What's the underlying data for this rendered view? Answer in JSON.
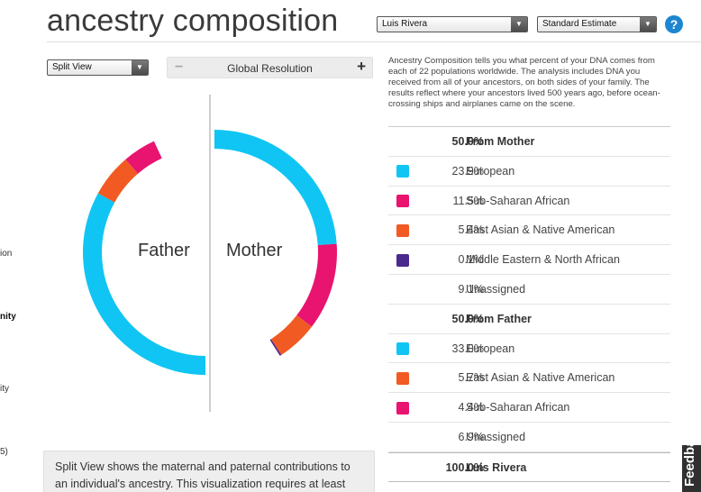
{
  "page": {
    "title": "ancestry composition"
  },
  "header": {
    "person_select": "Luis Rivera",
    "estimate_select": "Standard Estimate",
    "help_label": "?"
  },
  "controls": {
    "view_select": "Split View",
    "resolution_label": "Global Resolution",
    "minus_label": "−",
    "plus_label": "+"
  },
  "sidebar_fragments": [
    "ion",
    "nity",
    "ity",
    "5)"
  ],
  "description": "Ancestry Composition tells you what percent of your DNA comes from each of 22 populations worldwide. The analysis includes DNA you received from all of your ancestors, on both sides of your family. The results reflect where your ancestors lived 500 years ago, before ocean-crossing ships and airplanes came on the scene.",
  "info_box": "Split View shows the maternal and paternal contributions to an individual's ancestry. This visualization requires at least",
  "feedback_label": "Feedback",
  "colors": {
    "european": "#10c5f3",
    "sub_saharan_african": "#e8146f",
    "east_asian_native_american": "#f15a22",
    "middle_eastern_north_african": "#4b2a8e",
    "unassigned": "#dddddd"
  },
  "table": [
    {
      "kind": "head",
      "pct": "50.0%",
      "name": "From Mother",
      "color": ""
    },
    {
      "kind": "item",
      "pct": "23.9%",
      "name": "European",
      "color": "#10c5f3"
    },
    {
      "kind": "item",
      "pct": "11.5%",
      "name": "Sub-Saharan African",
      "color": "#e8146f"
    },
    {
      "kind": "item",
      "pct": "5.4%",
      "name": "East Asian & Native American",
      "color": "#f15a22"
    },
    {
      "kind": "item",
      "pct": "0.1%",
      "name": "Middle Eastern & North African",
      "color": "#4b2a8e"
    },
    {
      "kind": "item",
      "pct": "9.1%",
      "name": "Unassigned",
      "color": ""
    },
    {
      "kind": "head",
      "pct": "50.0%",
      "name": "From Father",
      "color": ""
    },
    {
      "kind": "item",
      "pct": "33.0%",
      "name": "European",
      "color": "#10c5f3"
    },
    {
      "kind": "item",
      "pct": "5.7%",
      "name": "East Asian & Native American",
      "color": "#f15a22"
    },
    {
      "kind": "item",
      "pct": "4.4%",
      "name": "Sub-Saharan African",
      "color": "#e8146f"
    },
    {
      "kind": "item",
      "pct": "6.9%",
      "name": "Unassigned",
      "color": ""
    },
    {
      "kind": "total",
      "pct": "100.0%",
      "name": "Luis Rivera",
      "color": ""
    }
  ],
  "chart_data": {
    "type": "pie",
    "father_label": "Father",
    "mother_label": "Mother",
    "father_segments": [
      {
        "name": "European",
        "value": 33.0,
        "color": "#10c5f3"
      },
      {
        "name": "East Asian & Native American",
        "value": 5.7,
        "color": "#f15a22"
      },
      {
        "name": "Sub-Saharan African",
        "value": 4.4,
        "color": "#e8146f"
      }
    ],
    "mother_segments": [
      {
        "name": "European",
        "value": 23.9,
        "color": "#10c5f3"
      },
      {
        "name": "Sub-Saharan African",
        "value": 11.5,
        "color": "#e8146f"
      },
      {
        "name": "East Asian & Native American",
        "value": 5.4,
        "color": "#f15a22"
      },
      {
        "name": "Middle Eastern & North African",
        "value": 0.1,
        "color": "#4b2a8e"
      }
    ]
  }
}
